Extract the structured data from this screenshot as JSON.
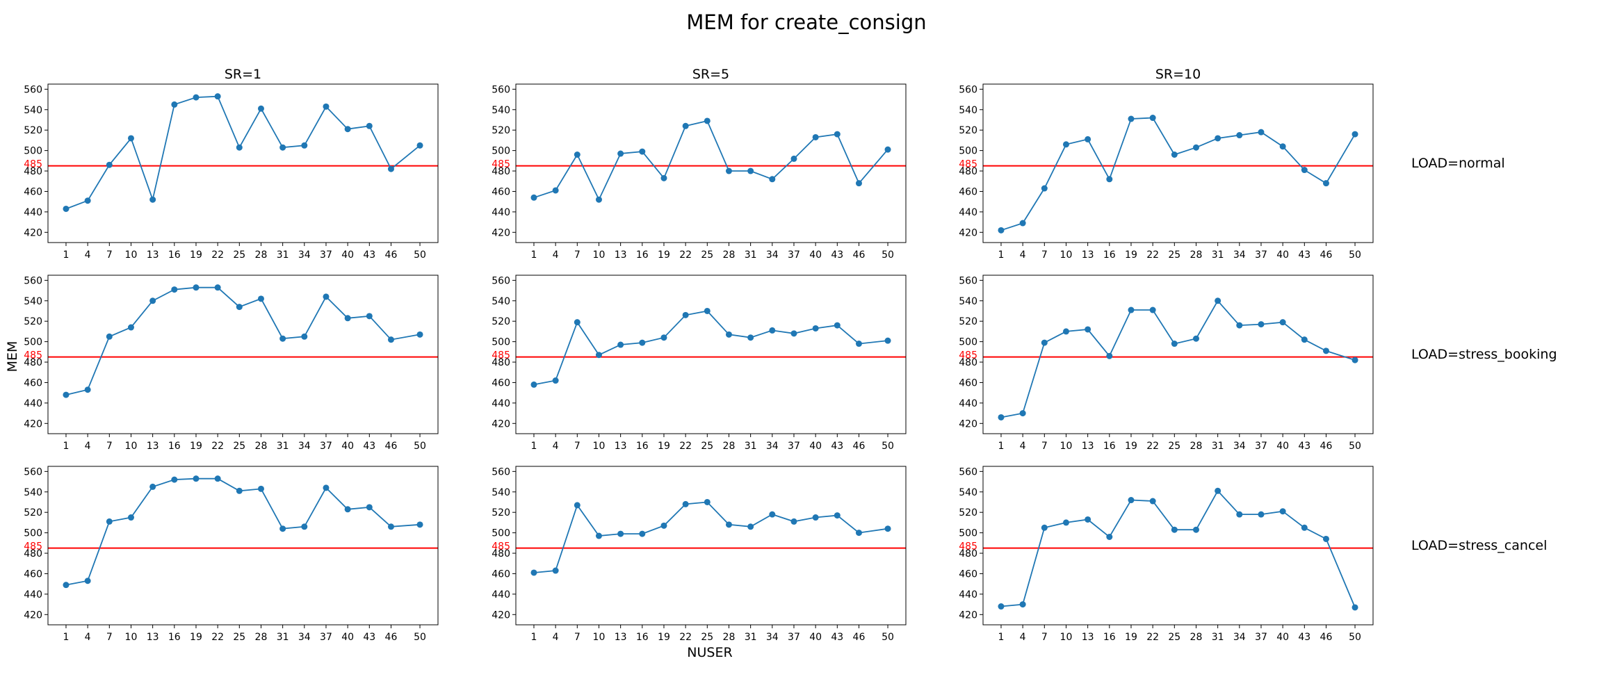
{
  "title": "MEM for create_consign",
  "xlabel": "NUSER",
  "ylabel": "MEM",
  "column_titles": [
    "SR=1",
    "SR=5",
    "SR=10"
  ],
  "row_labels": [
    "LOAD=normal",
    "LOAD=stress_booking",
    "LOAD=stress_cancel"
  ],
  "colors": {
    "series": "#1f77b4",
    "reference": "#ff0000"
  },
  "chart_data": {
    "type": "line",
    "x": [
      1,
      4,
      7,
      10,
      13,
      16,
      19,
      22,
      25,
      28,
      31,
      34,
      37,
      40,
      43,
      46,
      50
    ],
    "x_tick_labels": [
      "1",
      "4",
      "7",
      "10",
      "13",
      "16",
      "19",
      "22",
      "25",
      "28",
      "31",
      "34",
      "37",
      "40",
      "43",
      "46",
      "50"
    ],
    "y_ticks": [
      420,
      440,
      460,
      480,
      500,
      520,
      540,
      560
    ],
    "y_tick_labels": [
      "420",
      "440",
      "460",
      "480",
      "500",
      "520",
      "540",
      "560"
    ],
    "ylim": [
      410,
      565
    ],
    "xlim": [
      -1.5,
      52.5
    ],
    "reference_line": {
      "y": 485,
      "label": "485"
    },
    "marker": "circle",
    "grid": false,
    "panels": [
      {
        "row": 0,
        "col": 0,
        "values": [
          443,
          451,
          486,
          512,
          452,
          545,
          552,
          553,
          503,
          541,
          503,
          505,
          543,
          521,
          524,
          482,
          505
        ]
      },
      {
        "row": 0,
        "col": 1,
        "values": [
          454,
          461,
          496,
          452,
          497,
          499,
          473,
          524,
          529,
          480,
          480,
          472,
          492,
          513,
          516,
          468,
          501
        ]
      },
      {
        "row": 0,
        "col": 2,
        "values": [
          422,
          429,
          463,
          506,
          511,
          472,
          531,
          532,
          496,
          503,
          512,
          515,
          518,
          504,
          481,
          468,
          516
        ]
      },
      {
        "row": 1,
        "col": 0,
        "values": [
          448,
          453,
          505,
          514,
          540,
          551,
          553,
          553,
          534,
          542,
          503,
          505,
          544,
          523,
          525,
          502,
          507
        ]
      },
      {
        "row": 1,
        "col": 1,
        "values": [
          458,
          462,
          519,
          487,
          497,
          499,
          504,
          526,
          530,
          507,
          504,
          511,
          508,
          513,
          516,
          498,
          501
        ]
      },
      {
        "row": 1,
        "col": 2,
        "values": [
          426,
          430,
          499,
          510,
          512,
          486,
          531,
          531,
          498,
          503,
          540,
          516,
          517,
          519,
          502,
          491,
          482
        ]
      },
      {
        "row": 2,
        "col": 0,
        "values": [
          449,
          453,
          511,
          515,
          545,
          552,
          553,
          553,
          541,
          543,
          504,
          506,
          544,
          523,
          525,
          506,
          508
        ]
      },
      {
        "row": 2,
        "col": 1,
        "values": [
          461,
          463,
          527,
          497,
          499,
          499,
          507,
          528,
          530,
          508,
          506,
          518,
          511,
          515,
          517,
          500,
          504
        ]
      },
      {
        "row": 2,
        "col": 2,
        "values": [
          428,
          430,
          505,
          510,
          513,
          496,
          532,
          531,
          503,
          503,
          541,
          518,
          518,
          521,
          505,
          494,
          427
        ]
      }
    ]
  }
}
